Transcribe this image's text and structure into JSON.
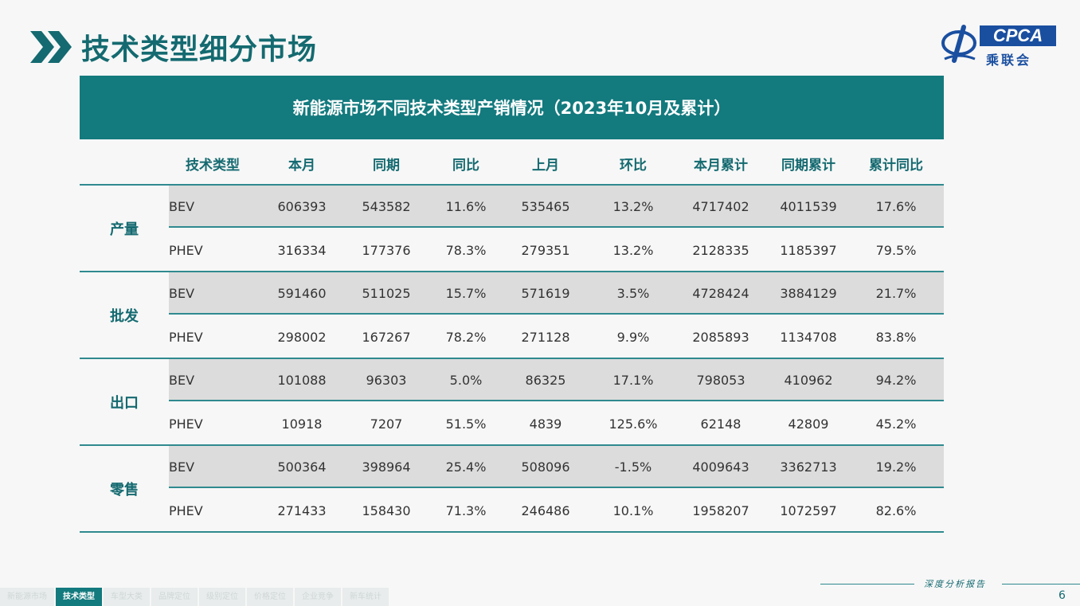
{
  "slide": {
    "title": "技术类型细分市场",
    "page_number": "6",
    "footer_caption": "深度分析报告"
  },
  "logo": {
    "text": "CPCA",
    "cn": "乘联会",
    "small": "CPCA"
  },
  "table": {
    "title": "新能源市场不同技术类型产销情况（2023年10月及累计）",
    "headers": [
      "技术类型",
      "本月",
      "同期",
      "同比",
      "上月",
      "环比",
      "本月累计",
      "同期累计",
      "累计同比"
    ],
    "groups": [
      {
        "label": "产量",
        "rows": [
          [
            "BEV",
            "606393",
            "543582",
            "11.6%",
            "535465",
            "13.2%",
            "4717402",
            "4011539",
            "17.6%"
          ],
          [
            "PHEV",
            "316334",
            "177376",
            "78.3%",
            "279351",
            "13.2%",
            "2128335",
            "1185397",
            "79.5%"
          ]
        ]
      },
      {
        "label": "批发",
        "rows": [
          [
            "BEV",
            "591460",
            "511025",
            "15.7%",
            "571619",
            "3.5%",
            "4728424",
            "3884129",
            "21.7%"
          ],
          [
            "PHEV",
            "298002",
            "167267",
            "78.2%",
            "271128",
            "9.9%",
            "2085893",
            "1134708",
            "83.8%"
          ]
        ]
      },
      {
        "label": "出口",
        "rows": [
          [
            "BEV",
            "101088",
            "96303",
            "5.0%",
            "86325",
            "17.1%",
            "798053",
            "410962",
            "94.2%"
          ],
          [
            "PHEV",
            "10918",
            "7207",
            "51.5%",
            "4839",
            "125.6%",
            "62148",
            "42809",
            "45.2%"
          ]
        ]
      },
      {
        "label": "零售",
        "rows": [
          [
            "BEV",
            "500364",
            "398964",
            "25.4%",
            "508096",
            "-1.5%",
            "4009643",
            "3362713",
            "19.2%"
          ],
          [
            "PHEV",
            "271433",
            "158430",
            "71.3%",
            "246486",
            "10.1%",
            "1958207",
            "1072597",
            "82.6%"
          ]
        ]
      }
    ]
  },
  "footer_tabs": [
    {
      "label": "新能源市场",
      "active": false
    },
    {
      "label": "技术类型",
      "active": true
    },
    {
      "label": "车型大类",
      "active": false
    },
    {
      "label": "品牌定位",
      "active": false
    },
    {
      "label": "级别定位",
      "active": false
    },
    {
      "label": "价格定位",
      "active": false
    },
    {
      "label": "企业竞争",
      "active": false
    },
    {
      "label": "新车统计",
      "active": false
    }
  ],
  "colors": {
    "accent": "#137a7e",
    "title": "#146a70",
    "row_shade": "#dcdcdc",
    "logo_blue": "#1a4fa0"
  }
}
